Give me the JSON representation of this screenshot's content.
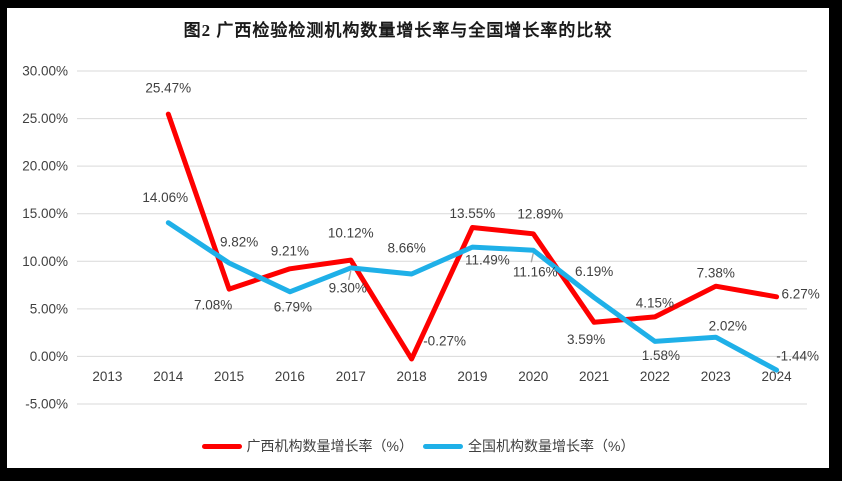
{
  "title": "图2 广西检验检测机构数量增长率与全国增长率的比较",
  "frame_color": "#000000",
  "canvas_color": "#ffffff",
  "chart_data": {
    "type": "line",
    "title": "图2 广西检验检测机构数量增长率与全国增长率的比较",
    "x": [
      "2013",
      "2014",
      "2015",
      "2016",
      "2017",
      "2018",
      "2019",
      "2020",
      "2021",
      "2022",
      "2023",
      "2024"
    ],
    "series": [
      {
        "name": "广西机构数量增长率（%）",
        "color": "#FE0000",
        "values": [
          null,
          25.47,
          7.08,
          9.21,
          10.12,
          -0.27,
          13.55,
          12.89,
          3.59,
          4.15,
          7.38,
          6.27
        ],
        "labels": [
          "",
          "25.47%",
          "7.08%",
          "9.21%",
          "10.12%",
          "-0.27%",
          "13.55%",
          "12.89%",
          "3.59%",
          "4.15%",
          "7.38%",
          "6.27%"
        ],
        "label_offsets": [
          [
            0,
            0
          ],
          [
            0,
            -26
          ],
          [
            -16,
            16
          ],
          [
            0,
            -18
          ],
          [
            0,
            -27
          ],
          [
            33,
            -18
          ],
          [
            0,
            -14
          ],
          [
            7,
            -20
          ],
          [
            -8,
            17
          ],
          [
            0,
            -14
          ],
          [
            0,
            -13
          ],
          [
            24,
            -3
          ]
        ]
      },
      {
        "name": "全国机构数量增长率（%）",
        "color": "#1FB0E8",
        "values": [
          null,
          14.06,
          9.82,
          6.79,
          9.3,
          8.66,
          11.49,
          11.16,
          6.19,
          1.58,
          2.02,
          -1.44
        ],
        "labels": [
          "",
          "14.06%",
          "9.82%",
          "6.79%",
          "9.30%",
          "8.66%",
          "11.49%",
          "11.16%",
          "6.19%",
          "1.58%",
          "2.02%",
          "-1.44%"
        ],
        "label_offsets": [
          [
            0,
            0
          ],
          [
            -3,
            -25
          ],
          [
            10,
            -21
          ],
          [
            3,
            15
          ],
          [
            -3,
            20
          ],
          [
            -5,
            -26
          ],
          [
            15,
            13
          ],
          [
            2,
            22
          ],
          [
            0,
            -26
          ],
          [
            6,
            14
          ],
          [
            12,
            -11
          ],
          [
            21,
            -14
          ]
        ]
      }
    ],
    "ylim": [
      -5,
      30
    ],
    "ytick_step": 5,
    "yticks": [
      "30.00%",
      "25.00%",
      "20.00%",
      "15.00%",
      "10.00%",
      "5.00%",
      "0.00%",
      "-5.00%"
    ],
    "grid": true,
    "gridline_color": "#D9D9D9",
    "axis_text_color": "#404040",
    "legend_position": "bottom",
    "leader_lines": [
      {
        "series": 1,
        "index": 4
      },
      {
        "series": 1,
        "index": 7
      }
    ]
  }
}
